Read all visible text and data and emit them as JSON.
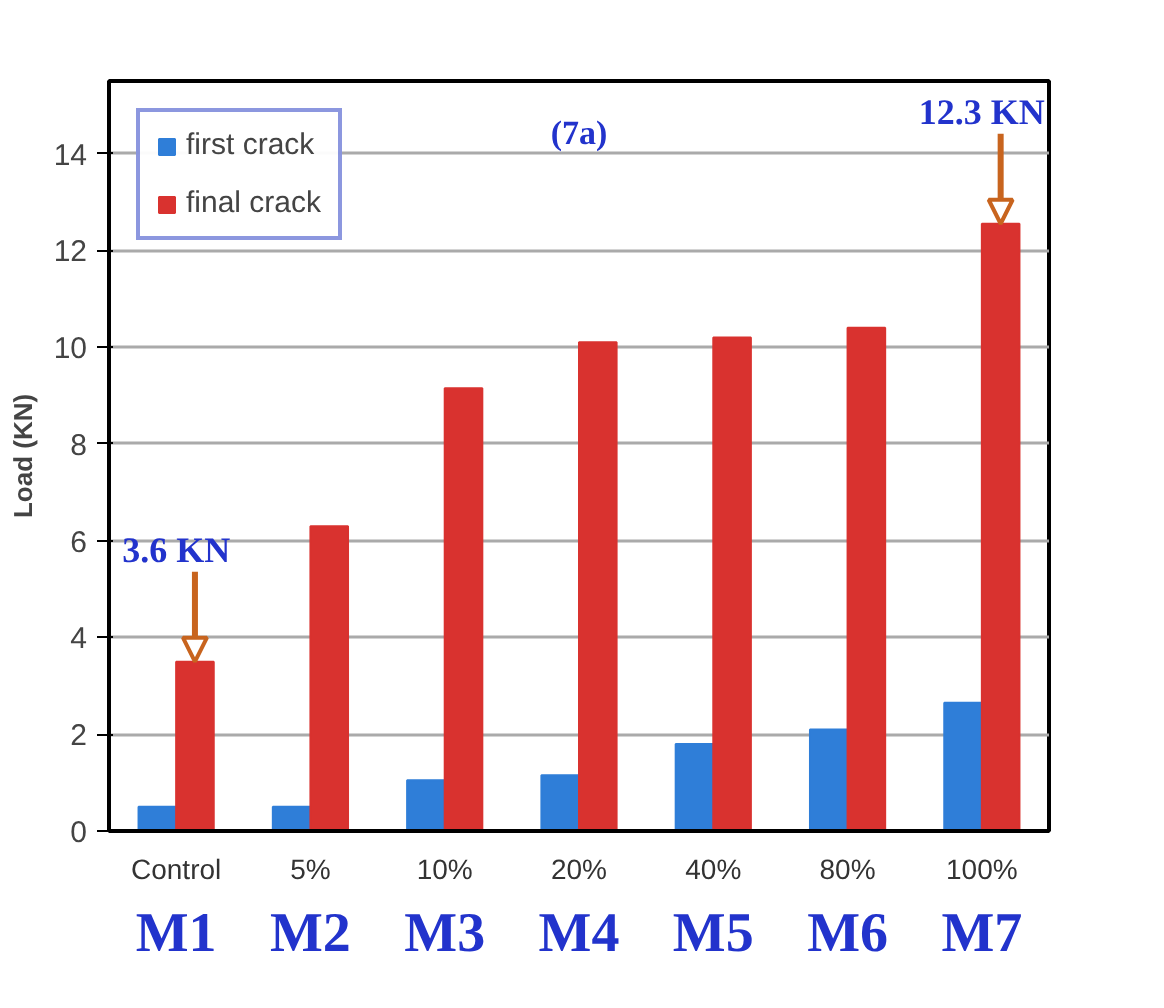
{
  "chart_data": {
    "type": "bar",
    "ylabel": "Load (KN)",
    "categories": [
      "Control",
      "5%",
      "10%",
      "20%",
      "40%",
      "80%",
      "100%"
    ],
    "series": [
      {
        "name": "first crack",
        "color": "#2f7ed8",
        "values": [
          0.5,
          0.5,
          1.05,
          1.15,
          1.8,
          2.1,
          2.65
        ]
      },
      {
        "name": "final crack",
        "color": "#d9322f",
        "values": [
          3.5,
          6.3,
          9.15,
          10.1,
          10.2,
          10.4,
          12.55
        ]
      }
    ],
    "ylim": [
      0,
      15.5
    ],
    "yticks": [
      0,
      2,
      4,
      6,
      8,
      10,
      12,
      14
    ],
    "grid": "y",
    "legend": "top left",
    "annotations": [
      "(7a)",
      {
        "text": "3.6 KN",
        "x": "Control",
        "y": 3.5
      },
      {
        "text": "12.3 KN",
        "x": "100%",
        "y": 12.55
      },
      "M1",
      "M2",
      "M3",
      "M4",
      "M5",
      "M6",
      "M7"
    ]
  }
}
